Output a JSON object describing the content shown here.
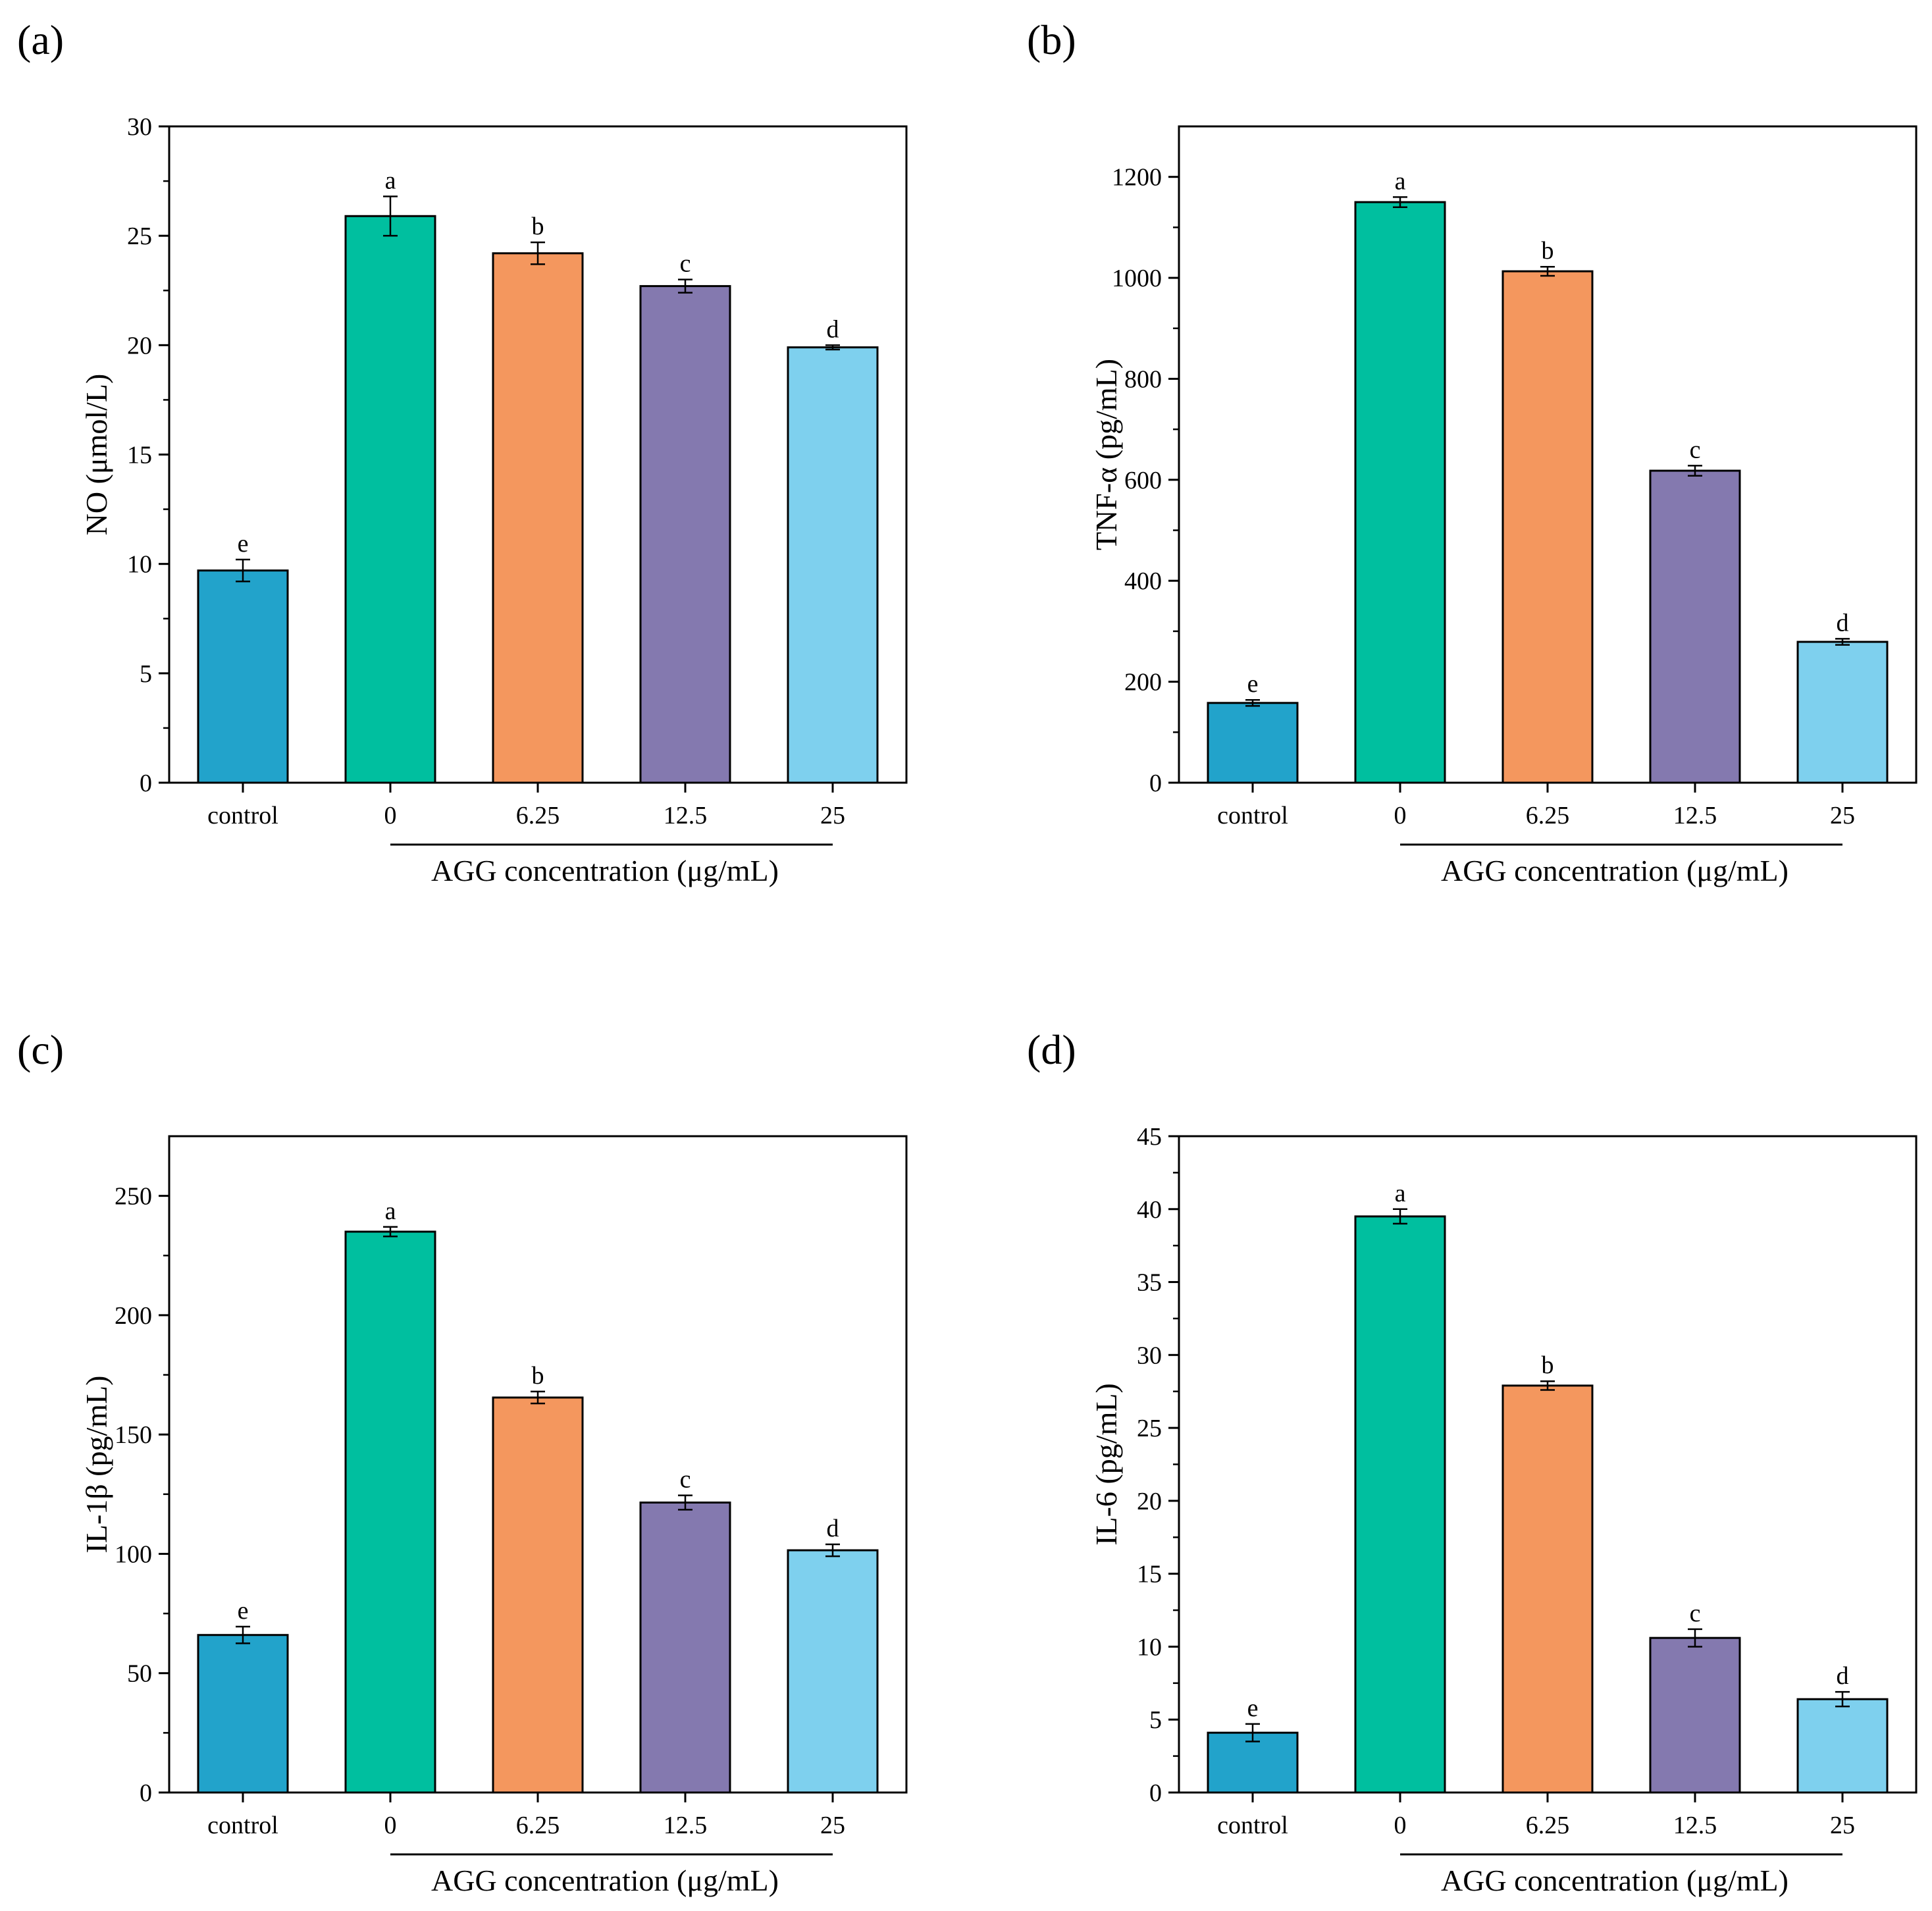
{
  "figure": {
    "group_label": "AGG concentration (μg/mL)",
    "colors": [
      "#22A3CB",
      "#00BF9F",
      "#F4975E",
      "#8479AF",
      "#7ED0EE"
    ]
  },
  "chart_data": [
    {
      "type": "bar",
      "panel": "(a)",
      "categories": [
        "control",
        "0",
        "6.25",
        "12.5",
        "25"
      ],
      "values": [
        9.7,
        25.9,
        24.2,
        22.7,
        19.9
      ],
      "errors": [
        0.5,
        0.9,
        0.5,
        0.3,
        0.1
      ],
      "significance": [
        "e",
        "a",
        "b",
        "c",
        "d"
      ],
      "ylabel": "NO (μmol/L)",
      "xlabel": "AGG concentration (μg/mL)",
      "ylim": [
        0,
        30
      ],
      "yticks": [
        0,
        5,
        10,
        15,
        20,
        25,
        30
      ],
      "yticklabels": [
        "0",
        "5",
        "10",
        "15",
        "20",
        "25",
        "30"
      ]
    },
    {
      "type": "bar",
      "panel": "(b)",
      "categories": [
        "control",
        "0",
        "6.25",
        "12.5",
        "25"
      ],
      "values": [
        158,
        1150,
        1013,
        618,
        279
      ],
      "errors": [
        6,
        10,
        9,
        10,
        6
      ],
      "significance": [
        "e",
        "a",
        "b",
        "c",
        "d"
      ],
      "ylabel": "TNF-α (pg/mL)",
      "xlabel": "AGG concentration (μg/mL)",
      "ylim": [
        0,
        1300
      ],
      "yticks": [
        0,
        200,
        400,
        600,
        800,
        1000,
        1200
      ],
      "yticklabels": [
        "0",
        "200",
        "400",
        "600",
        "800",
        "1000",
        "1200"
      ]
    },
    {
      "type": "bar",
      "panel": "(c)",
      "categories": [
        "control",
        "0",
        "6.25",
        "12.5",
        "25"
      ],
      "values": [
        66,
        235,
        165.5,
        121.5,
        101.5
      ],
      "errors": [
        3.5,
        2,
        2.5,
        3,
        2.5
      ],
      "significance": [
        "e",
        "a",
        "b",
        "c",
        "d"
      ],
      "ylabel": "IL-1β (pg/mL)",
      "xlabel": "AGG concentration (μg/mL)",
      "ylim": [
        0,
        275
      ],
      "yticks": [
        0,
        50,
        100,
        150,
        200,
        250
      ],
      "yticklabels": [
        "0",
        "50",
        "100",
        "150",
        "200",
        "250"
      ]
    },
    {
      "type": "bar",
      "panel": "(d)",
      "categories": [
        "control",
        "0",
        "6.25",
        "12.5",
        "25"
      ],
      "values": [
        4.1,
        39.5,
        27.9,
        10.6,
        6.4
      ],
      "errors": [
        0.6,
        0.5,
        0.3,
        0.6,
        0.5
      ],
      "significance": [
        "e",
        "a",
        "b",
        "c",
        "d"
      ],
      "ylabel": "IL-6 (pg/mL)",
      "xlabel": "AGG concentration (μg/mL)",
      "ylim": [
        0,
        45
      ],
      "yticks": [
        0,
        5,
        10,
        15,
        20,
        25,
        30,
        35,
        40,
        45
      ],
      "yticklabels": [
        "0",
        "5",
        "10",
        "15",
        "20",
        "25",
        "30",
        "35",
        "40",
        "45"
      ]
    }
  ]
}
